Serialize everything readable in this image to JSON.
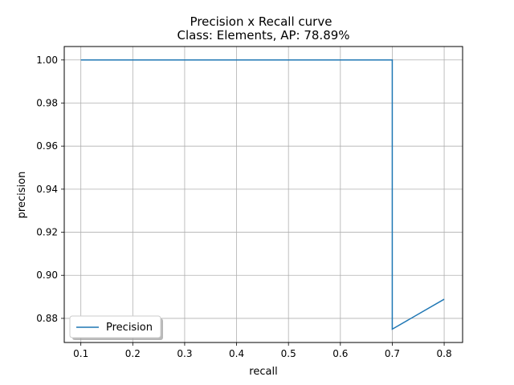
{
  "chart_data": {
    "type": "line",
    "title": "Precision x Recall curve",
    "subtitle": "Class: Elements, AP: 78.89%",
    "xlabel": "recall",
    "ylabel": "precision",
    "xlim": [
      0.068,
      0.8355
    ],
    "ylim": [
      0.8688,
      1.00625
    ],
    "xticks": [
      0.1,
      0.2,
      0.3,
      0.4,
      0.5,
      0.6,
      0.7,
      0.8
    ],
    "xtick_labels": [
      "0.1",
      "0.2",
      "0.3",
      "0.4",
      "0.5",
      "0.6",
      "0.7",
      "0.8"
    ],
    "yticks": [
      0.88,
      0.9,
      0.92,
      0.94,
      0.96,
      0.98,
      1.0
    ],
    "ytick_labels": [
      "0.88",
      "0.90",
      "0.92",
      "0.94",
      "0.96",
      "0.98",
      "1.00"
    ],
    "grid": true,
    "legend_position": "lower-left",
    "series": [
      {
        "name": "Precision",
        "color": "#1f77b4",
        "x": [
          0.1,
          0.7,
          0.7,
          0.8
        ],
        "y": [
          1.0,
          1.0,
          0.875,
          0.8889
        ]
      }
    ]
  }
}
